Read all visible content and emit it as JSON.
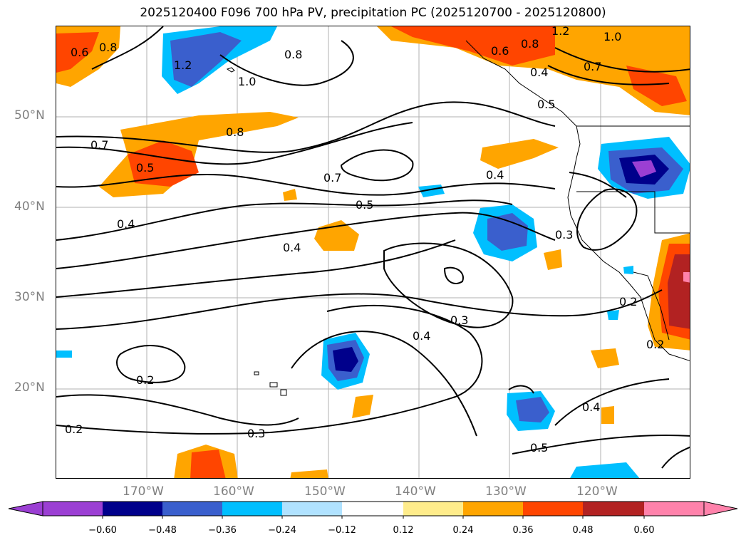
{
  "title": "2025120400 F096 700 hPa PV, precipitation PC (2025120700 - 2025120800)",
  "map": {
    "lat_labels": [
      "50°N",
      "40°N",
      "30°N",
      "20°N"
    ],
    "lon_labels": [
      "170°W",
      "160°W",
      "150°W",
      "140°W",
      "130°W",
      "120°W"
    ],
    "contour_labels": [
      "0.6",
      "0.8",
      "1.2",
      "0.8",
      "1.0",
      "1.2",
      "1.0",
      "0.6",
      "0.8",
      "0.7",
      "0.4",
      "0.5",
      "0.7",
      "0.8",
      "0.5",
      "0.7",
      "0.4",
      "0.5",
      "0.4",
      "0.4",
      "0.3",
      "0.3",
      "0.4",
      "0.2",
      "0.2",
      "0.2",
      "0.3",
      "0.5",
      "0.4",
      "0.2"
    ],
    "colors": {
      "purple": "#9b3fd3",
      "navy": "#00008b",
      "royal_blue": "#3a5fcd",
      "deep_sky_blue": "#00bfff",
      "light_blue": "#b0e2ff",
      "white": "#ffffff",
      "light_yellow": "#ffec8b",
      "orange": "#ffa500",
      "orange_red": "#ff4500",
      "firebrick": "#b22222",
      "pink": "#ff82ab"
    }
  },
  "colorbar": {
    "ticks": [
      "−0.60",
      "−0.48",
      "−0.36",
      "−0.24",
      "−0.12",
      "0.12",
      "0.24",
      "0.36",
      "0.48",
      "0.60"
    ]
  }
}
